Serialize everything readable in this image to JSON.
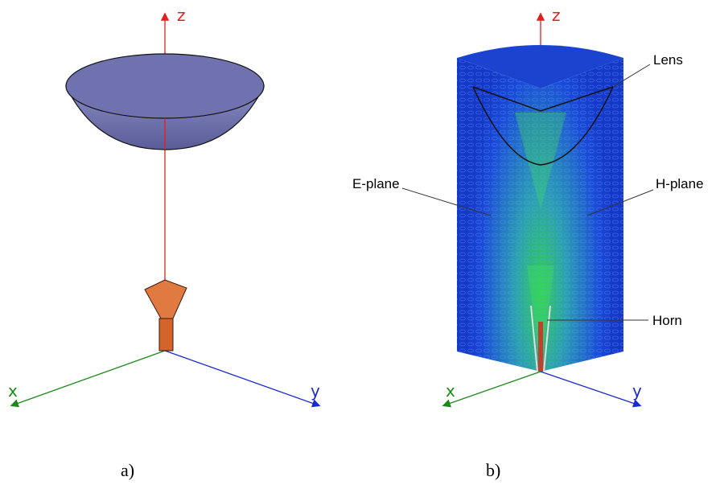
{
  "panels": [
    {
      "caption": "a)",
      "axes": {
        "z": "z",
        "x": "x",
        "y": "y"
      }
    },
    {
      "caption": "b)",
      "axes": {
        "z": "z",
        "x": "x",
        "y": "y"
      },
      "labels": {
        "lens": "Lens",
        "e_plane": "E-plane",
        "h_plane": "H-plane",
        "horn": "Horn"
      }
    }
  ]
}
